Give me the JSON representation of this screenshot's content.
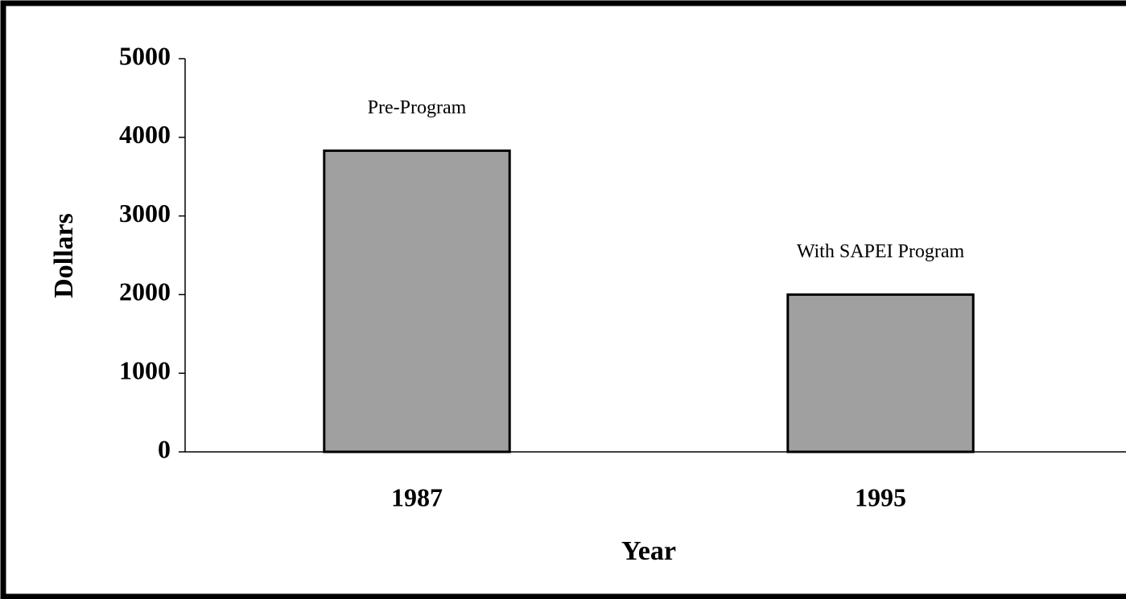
{
  "chart_data": {
    "type": "bar",
    "x_label": "Year",
    "y_label": "Dollars",
    "categories": [
      "1987",
      "1995"
    ],
    "values": [
      3830,
      2000
    ],
    "annotations": [
      "Pre-Program",
      "With SAPEI Program"
    ],
    "color": "#a0a0a0",
    "ylim": [
      0,
      5000
    ],
    "yticks": [
      0,
      1000,
      2000,
      3000,
      4000,
      5000
    ],
    "grid": false
  }
}
